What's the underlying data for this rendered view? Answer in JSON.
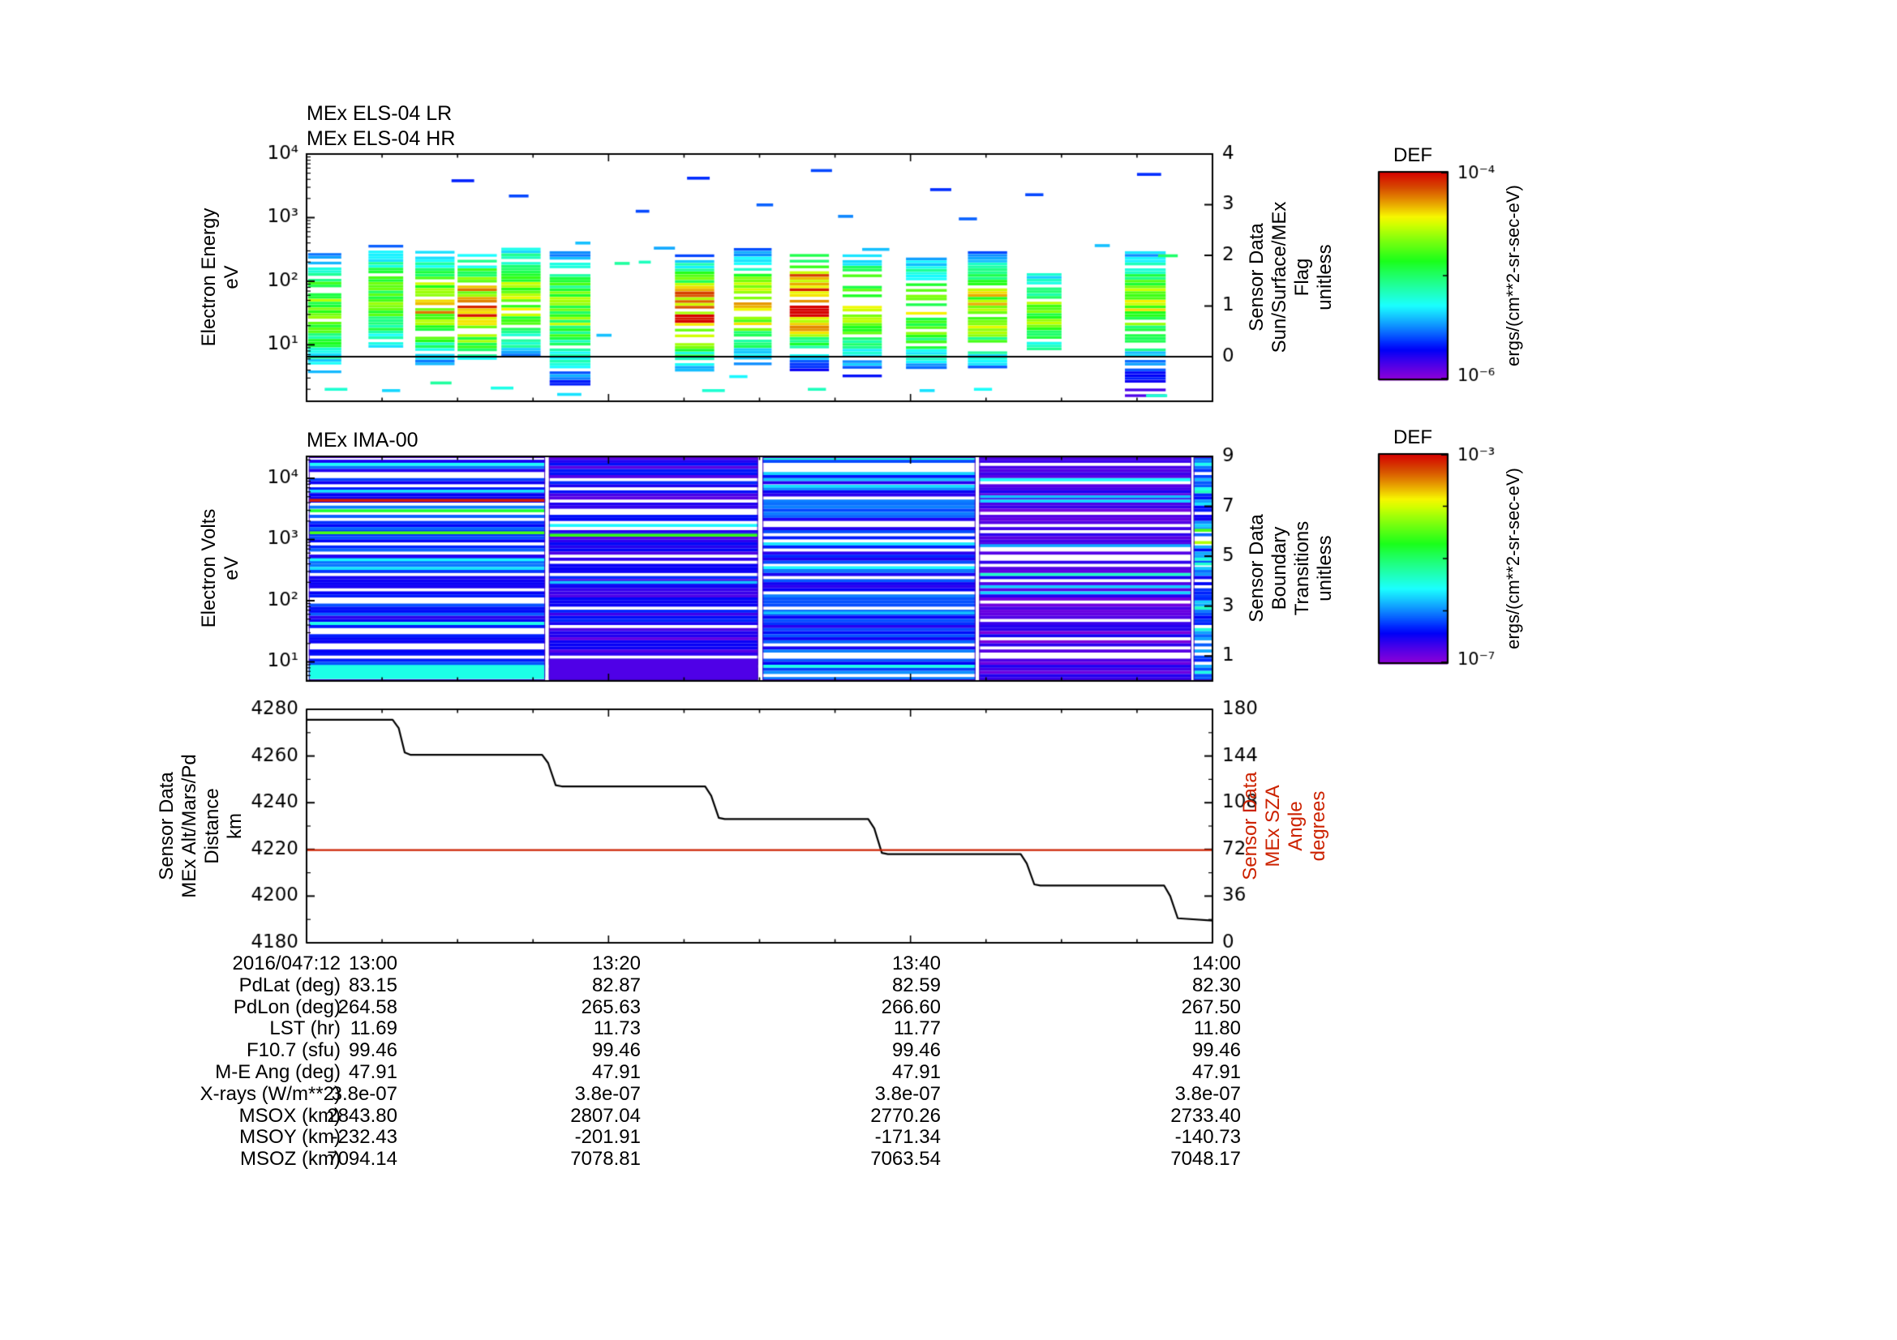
{
  "colors": {
    "background": "#ffffff",
    "axis": "#000000",
    "sza": "#cc2200",
    "alt_line": "#000000",
    "flag_line": "#000000",
    "block_edge": "#4400bb"
  },
  "titles": {
    "els_lr": "MEx ELS-04 LR",
    "els_hr": "MEx ELS-04 HR",
    "ima": "MEx IMA-00"
  },
  "axis_labels": {
    "els_left": "Electron Energy\neV",
    "els_right": "Sensor Data\nSun/Surface/MEx\nFlag\nunitless",
    "ima_left": "Electron Volts\neV",
    "ima_right": "Sensor Data\nBoundary\nTransitions\nunitless",
    "alt_left": "Sensor Data\nMEx Alt/Mars/Pd\nDistance\nkm",
    "sza_right": "Sensor Data\nMEx SZA\nAngle\ndegrees"
  },
  "colorbars": [
    {
      "title": "DEF",
      "units": "ergs/(cm**2-sr-sec-eV)",
      "top_tick": "10⁻⁴",
      "bottom_tick": "10⁻⁶",
      "decades": 2
    },
    {
      "title": "DEF",
      "units": "ergs/(cm**2-sr-sec-eV)",
      "top_tick": "10⁻³",
      "bottom_tick": "10⁻⁷",
      "decades": 4
    }
  ],
  "chart_data": [
    {
      "type": "heatmap",
      "id": "els",
      "title": "MEx ELS-04 LR / MEx ELS-04 HR",
      "ylabel": "Electron Energy (eV)",
      "y_log_range": [
        0.112,
        4.0
      ],
      "yticks": [
        {
          "v": 4,
          "label": "10⁴"
        },
        {
          "v": 3,
          "label": "10³"
        },
        {
          "v": 2,
          "label": "10²"
        },
        {
          "v": 1,
          "label": "10¹"
        }
      ],
      "right_axis": {
        "label": "Sun/Surface/MEx Flag (unitless)",
        "range": [
          -0.88,
          4
        ],
        "ticks": [
          4,
          3,
          2,
          1,
          0
        ]
      },
      "x_minutes_range": [
        0,
        60
      ],
      "x_ticks": {
        "minutes": [
          0,
          20,
          40,
          60
        ],
        "labels": [
          "13:00",
          "13:20",
          "13:40",
          "14:00"
        ]
      },
      "flag_series": {
        "name": "Sun/Surface/MEx Flag",
        "value": 0
      },
      "bands": [
        [
          0.1,
          2.3,
          2.42,
          0.55,
          1.5,
          1.0,
          0.62
        ],
        [
          4.1,
          6.4,
          2.55,
          0.9,
          1.7,
          0.9,
          0.6
        ],
        [
          7.2,
          9.8,
          2.5,
          0.7,
          1.6,
          0.9,
          0.72
        ],
        [
          10.0,
          12.6,
          2.45,
          0.75,
          1.55,
          0.85,
          0.86
        ],
        [
          12.9,
          15.5,
          2.55,
          0.8,
          1.7,
          0.9,
          0.7
        ],
        [
          16.1,
          18.8,
          2.45,
          0.35,
          1.5,
          1.0,
          0.62
        ],
        [
          24.4,
          27.0,
          2.4,
          0.6,
          1.5,
          0.8,
          0.88
        ],
        [
          28.3,
          30.8,
          2.5,
          0.7,
          1.6,
          0.85,
          0.72
        ],
        [
          32.0,
          34.6,
          2.45,
          0.55,
          1.7,
          0.8,
          0.97
        ],
        [
          35.5,
          38.1,
          2.4,
          0.5,
          1.6,
          0.95,
          0.66
        ],
        [
          39.7,
          42.4,
          2.35,
          0.6,
          1.5,
          0.9,
          0.64
        ],
        [
          43.8,
          46.4,
          2.45,
          0.65,
          1.55,
          0.85,
          0.74
        ],
        [
          47.7,
          50.0,
          2.15,
          0.9,
          1.5,
          0.8,
          0.62
        ],
        [
          54.2,
          56.9,
          2.45,
          0.2,
          1.6,
          0.9,
          0.68
        ]
      ],
      "dashes": [
        [
          9.6,
          3.58,
          1.5,
          0.17
        ],
        [
          13.4,
          3.34,
          1.3,
          0.2
        ],
        [
          25.2,
          3.62,
          1.5,
          0.18
        ],
        [
          29.8,
          3.2,
          1.1,
          0.22
        ],
        [
          33.4,
          3.74,
          1.4,
          0.2
        ],
        [
          35.2,
          3.02,
          1.0,
          0.25
        ],
        [
          41.3,
          3.44,
          1.4,
          0.18
        ],
        [
          43.2,
          2.98,
          1.2,
          0.22
        ],
        [
          47.6,
          3.36,
          1.2,
          0.2
        ],
        [
          55.0,
          3.68,
          1.6,
          0.18
        ],
        [
          21.8,
          3.1,
          0.9,
          0.2
        ],
        [
          17.8,
          2.6,
          1.0,
          0.3
        ],
        [
          23.0,
          2.52,
          1.4,
          0.28
        ],
        [
          36.8,
          2.5,
          1.8,
          0.3
        ],
        [
          52.2,
          2.56,
          1.0,
          0.3
        ],
        [
          56.4,
          2.4,
          1.3,
          0.5
        ],
        [
          20.4,
          2.28,
          1.0,
          0.45
        ],
        [
          22.0,
          2.3,
          0.8,
          0.42
        ],
        [
          19.2,
          1.15,
          1.0,
          0.3
        ],
        [
          28.0,
          0.5,
          1.2,
          0.35
        ],
        [
          1.2,
          0.3,
          1.5,
          0.4
        ],
        [
          5.0,
          0.28,
          1.2,
          0.32
        ],
        [
          8.2,
          0.4,
          1.4,
          0.45
        ],
        [
          12.2,
          0.32,
          1.5,
          0.38
        ],
        [
          16.6,
          0.22,
          1.6,
          0.33
        ],
        [
          26.2,
          0.28,
          1.5,
          0.4
        ],
        [
          33.2,
          0.3,
          1.2,
          0.42
        ],
        [
          40.6,
          0.28,
          1.0,
          0.33
        ],
        [
          44.2,
          0.3,
          1.2,
          0.36
        ],
        [
          55.6,
          0.2,
          1.4,
          0.4
        ]
      ]
    },
    {
      "type": "heatmap",
      "id": "ima",
      "title": "MEx IMA-00",
      "ylabel": "Electron Volts (eV)",
      "y_log_range": [
        0.689,
        4.358
      ],
      "yticks": [
        {
          "v": 4,
          "label": "10⁴"
        },
        {
          "v": 3,
          "label": "10³"
        },
        {
          "v": 2,
          "label": "10²"
        },
        {
          "v": 1,
          "label": "10¹"
        }
      ],
      "right_axis": {
        "label": "Boundary Transitions (unitless)",
        "range": [
          0,
          9
        ],
        "ticks": [
          9,
          7,
          5,
          3,
          1
        ]
      },
      "x_minutes_range": [
        0,
        60
      ],
      "blocks": [
        {
          "t0": 0.15,
          "t1": 15.8,
          "bias": 0.1,
          "span": 0.14,
          "cyan_p": 0.06,
          "white_p": 0.22,
          "lines": [
            [
              3.79,
              0.33
            ],
            [
              3.64,
              0.97
            ],
            [
              3.47,
              0.55
            ],
            [
              3.11,
              0.62
            ],
            [
              2.67,
              0.35
            ]
          ],
          "bottom_band": [
            0.95,
            0.72,
            0.38
          ]
        },
        {
          "t0": 16.05,
          "t1": 29.9,
          "bias": 0.05,
          "span": 0.13,
          "cyan_p": 0.05,
          "white_p": 0.24,
          "lines": [
            [
              3.23,
              0.35
            ],
            [
              3.07,
              0.6
            ],
            [
              2.3,
              0.3
            ]
          ],
          "bottom_band": [
            1.05,
            0.72,
            0.07
          ]
        },
        {
          "t0": 30.2,
          "t1": 44.3,
          "bias": 0.1,
          "span": 0.16,
          "cyan_p": 0.09,
          "white_p": 0.22,
          "lines": [
            [
              3.87,
              0.33
            ],
            [
              2.54,
              0.35
            ],
            [
              1.8,
              0.3
            ]
          ],
          "bottom_band": null
        },
        {
          "t0": 44.55,
          "t1": 58.6,
          "bias": 0.02,
          "span": 0.11,
          "cyan_p": 0.05,
          "white_p": 0.26,
          "lines": [
            [
              3.7,
              0.3
            ],
            [
              2.9,
              0.28
            ]
          ],
          "bottom_band": null
        },
        {
          "t0": 58.75,
          "t1": 60.0,
          "bias": 0.12,
          "span": 0.2,
          "cyan_p": 0.15,
          "white_p": 0.18,
          "lines": [
            [
              3.15,
              0.62
            ],
            [
              2.95,
              0.72
            ],
            [
              2.6,
              0.4
            ]
          ],
          "bottom_band": null
        }
      ]
    },
    {
      "type": "line",
      "id": "alt_sza",
      "left_axis": {
        "label": "MEx Alt/Mars/Pd Distance (km)",
        "range": [
          4180,
          4280
        ],
        "ticks": [
          4280,
          4260,
          4240,
          4220,
          4200,
          4180
        ]
      },
      "right_axis": {
        "label": "MEx SZA Angle (degrees)",
        "range": [
          0,
          180
        ],
        "ticks": [
          180,
          144,
          108,
          72,
          36,
          0
        ]
      },
      "x_minutes_range": [
        0,
        60
      ],
      "x_ticks": {
        "minutes": [
          0,
          20,
          40,
          60
        ],
        "labels": [
          "13:00",
          "13:20",
          "13:40",
          "14:00"
        ]
      },
      "series": [
        {
          "name": "MEx Alt/Mars/Pd Distance (km)",
          "color": "#000000",
          "axis": "left",
          "points": [
            [
              0,
              4275.5
            ],
            [
              5.7,
              4275.5
            ],
            [
              6.1,
              4272
            ],
            [
              6.5,
              4261.5
            ],
            [
              6.9,
              4260.5
            ],
            [
              15.6,
              4260.5
            ],
            [
              16.0,
              4257
            ],
            [
              16.5,
              4247.5
            ],
            [
              16.9,
              4247
            ],
            [
              26.4,
              4247
            ],
            [
              26.8,
              4243
            ],
            [
              27.3,
              4233.5
            ],
            [
              27.7,
              4233
            ],
            [
              37.2,
              4233
            ],
            [
              37.6,
              4229
            ],
            [
              38.1,
              4218.5
            ],
            [
              38.5,
              4218
            ],
            [
              47.3,
              4218
            ],
            [
              47.7,
              4214
            ],
            [
              48.2,
              4205
            ],
            [
              48.6,
              4204.5
            ],
            [
              56.8,
              4204.5
            ],
            [
              57.2,
              4200
            ],
            [
              57.7,
              4190.5
            ],
            [
              60,
              4189.5
            ]
          ]
        },
        {
          "name": "MEx SZA Angle (degrees)",
          "color": "#cc2200",
          "axis": "right",
          "points": [
            [
              0,
              71.5
            ],
            [
              60,
              71.5
            ]
          ]
        }
      ]
    }
  ],
  "table": {
    "rows": [
      {
        "label": "2016/047:12",
        "values": [
          "13:00",
          "13:20",
          "13:40",
          "14:00"
        ]
      },
      {
        "label": "PdLat (deg)",
        "values": [
          "83.15",
          "82.87",
          "82.59",
          "82.30"
        ]
      },
      {
        "label": "PdLon (deg)",
        "values": [
          "264.58",
          "265.63",
          "266.60",
          "267.50"
        ]
      },
      {
        "label": "LST (hr)",
        "values": [
          "11.69",
          "11.73",
          "11.77",
          "11.80"
        ]
      },
      {
        "label": "F10.7 (sfu)",
        "values": [
          "99.46",
          "99.46",
          "99.46",
          "99.46"
        ]
      },
      {
        "label": "M-E Ang (deg)",
        "values": [
          "47.91",
          "47.91",
          "47.91",
          "47.91"
        ]
      },
      {
        "label": "X-rays (W/m**2)",
        "values": [
          "3.8e-07",
          "3.8e-07",
          "3.8e-07",
          "3.8e-07"
        ]
      },
      {
        "label": "MSOX (km)",
        "values": [
          "2843.80",
          "2807.04",
          "2770.26",
          "2733.40"
        ]
      },
      {
        "label": "MSOY (km)",
        "values": [
          "-232.43",
          "-201.91",
          "-171.34",
          "-140.73"
        ]
      },
      {
        "label": "MSOZ (km)",
        "values": [
          "7094.14",
          "7078.81",
          "7063.54",
          "7048.17"
        ]
      }
    ]
  }
}
